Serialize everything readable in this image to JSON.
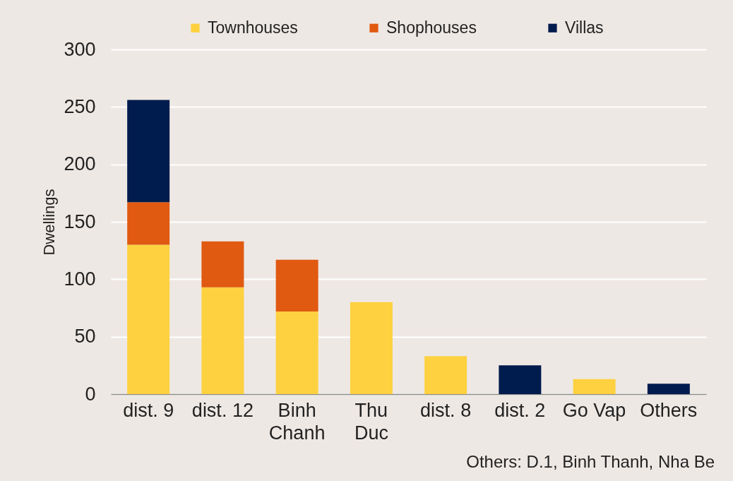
{
  "chart_data": {
    "type": "bar",
    "stacked": true,
    "ylabel": "Dwellings",
    "categories": [
      "dist. 9",
      "dist. 12",
      "Binh\nChanh",
      "Thu\nDuc",
      "dist. 8",
      "dist. 2",
      "Go Vap",
      "Others"
    ],
    "series": [
      {
        "name": "Townhouses",
        "color": "#fdd13f",
        "values": [
          130,
          93,
          72,
          80,
          33,
          null,
          13,
          null
        ]
      },
      {
        "name": "Shophouses",
        "color": "#e05a12",
        "values": [
          37,
          40,
          45,
          null,
          null,
          null,
          null,
          null
        ]
      },
      {
        "name": "Villas",
        "color": "#001b4d",
        "values": [
          89,
          null,
          null,
          null,
          null,
          25,
          null,
          9
        ]
      }
    ],
    "ylim": [
      0,
      300
    ],
    "yticks": [
      0,
      50,
      100,
      150,
      200,
      250,
      300
    ],
    "grid": "y",
    "legend": "top",
    "annotations": [
      "Others: D.1, Binh Thanh, Nha Be"
    ]
  }
}
